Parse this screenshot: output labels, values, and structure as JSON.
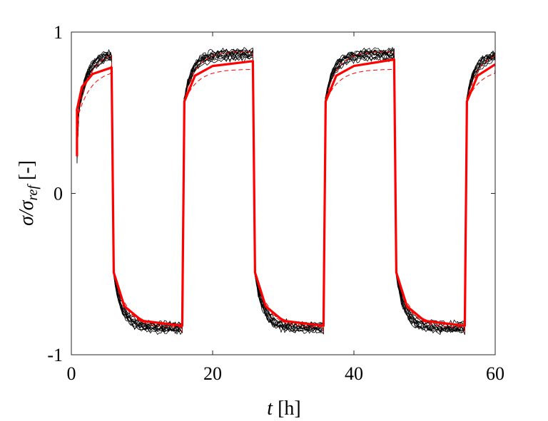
{
  "chart_data": {
    "type": "line",
    "xlabel": "t [h]",
    "ylabel": "σ/σref [-]",
    "xlim": [
      0,
      60
    ],
    "ylim": [
      -1,
      1
    ],
    "xticks": [
      0,
      20,
      40,
      60
    ],
    "xtick_labels": [
      "0",
      "20",
      "40",
      "60"
    ],
    "yticks": [
      -1,
      0,
      1
    ],
    "ytick_labels": [
      "-1",
      "0",
      "1"
    ],
    "grid": false,
    "legend": "none",
    "colors": {
      "samples": "#000000",
      "mean": "#ff0000",
      "bounds": "#ff0000"
    },
    "square_wave": {
      "switch_times_h": [
        0.8,
        5.7,
        15.7,
        25.7,
        35.7,
        45.7,
        55.7
      ],
      "initial_value": 0.23,
      "high_start": 0.5,
      "high_plateau": 0.83,
      "low_start": -0.49,
      "low_plateau": -0.84,
      "time_constant_h": 1.5
    },
    "series": [
      {
        "role": "samples",
        "style": "thin black lines",
        "count": 12,
        "spread": 0.06
      },
      {
        "role": "mean",
        "style": "thick red line",
        "points": [
          [
            0.8,
            0.23
          ],
          [
            0.8,
            0.52
          ],
          [
            1.5,
            0.66
          ],
          [
            3.0,
            0.74
          ],
          [
            5.7,
            0.78
          ],
          [
            6.0,
            -0.49
          ],
          [
            7.5,
            -0.7
          ],
          [
            10.0,
            -0.79
          ],
          [
            15.7,
            -0.82
          ],
          [
            16.0,
            0.57
          ],
          [
            17.5,
            0.73
          ],
          [
            20.0,
            0.79
          ],
          [
            25.7,
            0.82
          ],
          [
            26.0,
            -0.49
          ],
          [
            27.5,
            -0.7
          ],
          [
            30.0,
            -0.79
          ],
          [
            35.7,
            -0.82
          ],
          [
            36.0,
            0.57
          ],
          [
            37.5,
            0.73
          ],
          [
            40.0,
            0.79
          ],
          [
            45.7,
            0.83
          ],
          [
            46.0,
            -0.49
          ],
          [
            47.5,
            -0.7
          ],
          [
            50.0,
            -0.79
          ],
          [
            55.7,
            -0.82
          ],
          [
            56.0,
            0.57
          ],
          [
            57.5,
            0.73
          ],
          [
            60.0,
            0.8
          ]
        ]
      },
      {
        "role": "upper-bound",
        "style": "thin dashed red line"
      },
      {
        "role": "lower-bound",
        "style": "thin dashed red line"
      }
    ]
  }
}
